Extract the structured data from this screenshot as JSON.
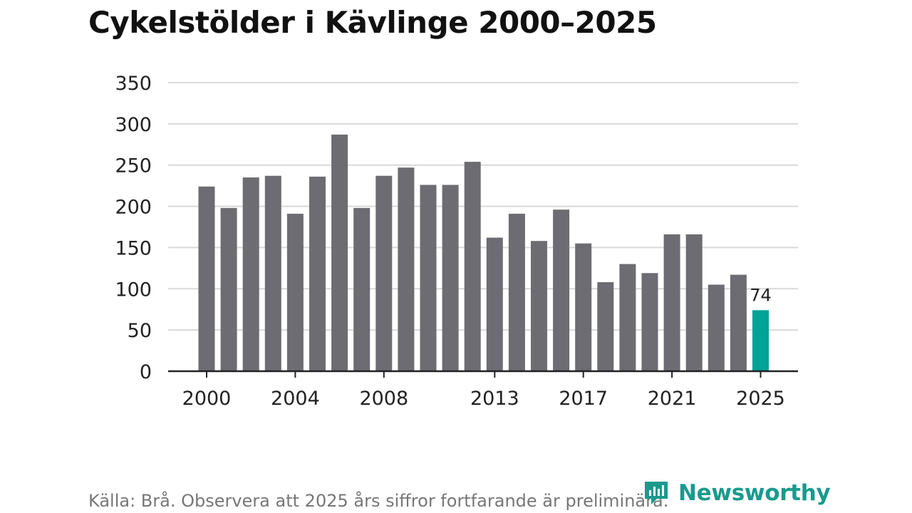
{
  "chart_data": {
    "type": "bar",
    "title": "Cykelstölder i Kävlinge 2000–2025",
    "xlabel": "",
    "ylabel": "",
    "categories": [
      "2000",
      "2001",
      "2002",
      "2003",
      "2004",
      "2005",
      "2006",
      "2007",
      "2008",
      "2009",
      "2010",
      "2011",
      "2012",
      "2013",
      "2014",
      "2015",
      "2016",
      "2017",
      "2018",
      "2019",
      "2020",
      "2021",
      "2022",
      "2023",
      "2024",
      "2025"
    ],
    "values": [
      224,
      198,
      235,
      237,
      191,
      236,
      287,
      198,
      237,
      247,
      226,
      226,
      254,
      162,
      191,
      158,
      196,
      155,
      108,
      130,
      119,
      166,
      166,
      105,
      117,
      74
    ],
    "x_tick_labels": [
      "2000",
      "2004",
      "2008",
      "2013",
      "2017",
      "2021",
      "2025"
    ],
    "y_ticks": [
      0,
      50,
      100,
      150,
      200,
      250,
      300,
      350
    ],
    "ylim": [
      0,
      350
    ],
    "grid": true,
    "highlight": {
      "category": "2025",
      "label": "74"
    },
    "colors": {
      "bar": "#6d6c72",
      "highlight": "#00a396",
      "grid": "#d9d9d9",
      "axis": "#222222"
    }
  },
  "footer": {
    "source": "Källa: Brå. Observera att 2025 års siffror fortfarande är preliminära."
  },
  "brand": {
    "name": "Newsworthy",
    "icon": "newsworthy-logo-icon",
    "color": "#1a9a8c"
  }
}
